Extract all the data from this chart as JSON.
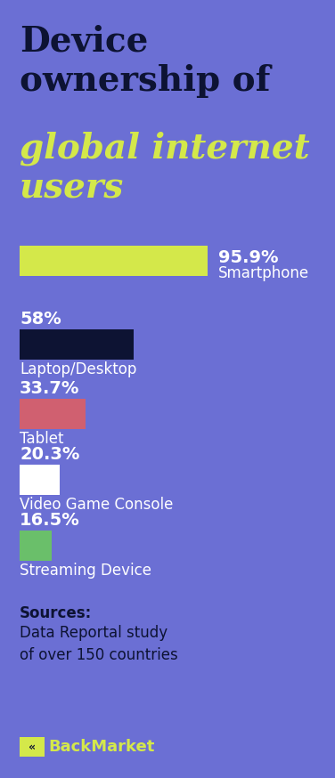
{
  "background_color": "#6B6FD4",
  "title_color": "#0d1333",
  "title_italic_color": "#d4e84a",
  "bars": [
    {
      "label": "Smartphone",
      "pct": "95.9%",
      "value": 95.9,
      "color": "#d4e84a"
    },
    {
      "label": "Laptop/Desktop",
      "pct": "58%",
      "value": 58.0,
      "color": "#0d1333"
    },
    {
      "label": "Tablet",
      "pct": "33.7%",
      "value": 33.7,
      "color": "#d06070"
    },
    {
      "label": "Video Game Console",
      "pct": "20.3%",
      "value": 20.3,
      "color": "#ffffff"
    },
    {
      "label": "Streaming Device",
      "pct": "16.5%",
      "value": 16.5,
      "color": "#6abf6a"
    }
  ],
  "source_label": "Sources:",
  "source_text": "Data Reportal study\nof over 150 countries",
  "brand_color": "#d4e84a",
  "text_color": "#ffffff",
  "dark_text_color": "#0d1333"
}
